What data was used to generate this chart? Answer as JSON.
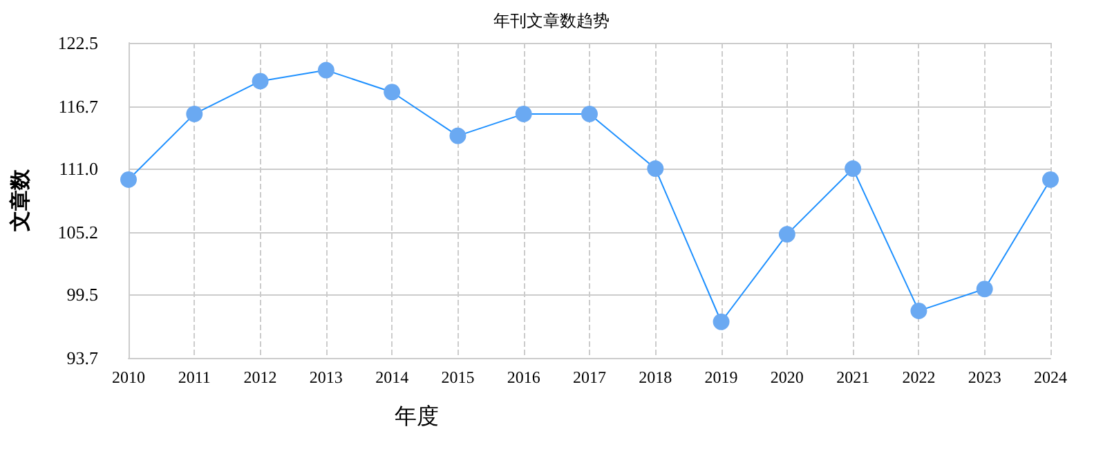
{
  "chart_data": {
    "type": "line",
    "title": "年刊文章数趋势",
    "xlabel": "年度",
    "ylabel": "文章数",
    "categories": [
      "2010",
      "2011",
      "2012",
      "2013",
      "2014",
      "2015",
      "2016",
      "2017",
      "2018",
      "2019",
      "2020",
      "2021",
      "2022",
      "2023",
      "2024"
    ],
    "series": [
      {
        "color": "#1e90ff",
        "values": [
          110,
          116,
          119,
          120,
          118,
          114,
          116,
          116,
          111,
          97,
          105,
          111,
          98,
          100,
          110
        ]
      }
    ],
    "ylim": [
      93.7,
      122.5
    ],
    "yticks": [
      93.7,
      99.5,
      105.2,
      {
        "value": 111,
        "label": "111.0"
      },
      116.7,
      122.5
    ],
    "grid": true,
    "marker": "circle",
    "line_style": "solid"
  }
}
